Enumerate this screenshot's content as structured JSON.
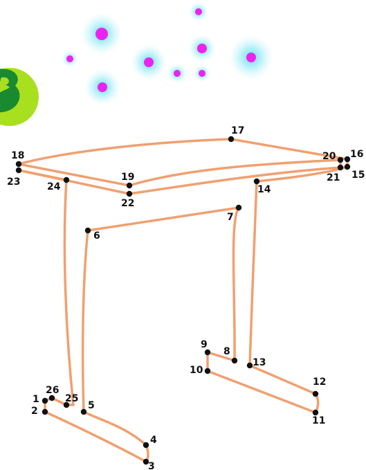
{
  "puzzle": {
    "type": "connect-the-dots",
    "subject": "table",
    "line_color": "#f0a070",
    "dot_color": "#111111",
    "dots": [
      {
        "n": "1"
      },
      {
        "n": "2"
      },
      {
        "n": "3"
      },
      {
        "n": "4"
      },
      {
        "n": "5"
      },
      {
        "n": "6"
      },
      {
        "n": "7"
      },
      {
        "n": "8"
      },
      {
        "n": "9"
      },
      {
        "n": "10"
      },
      {
        "n": "11"
      },
      {
        "n": "12"
      },
      {
        "n": "13"
      },
      {
        "n": "14"
      },
      {
        "n": "15"
      },
      {
        "n": "16"
      },
      {
        "n": "17"
      },
      {
        "n": "18"
      },
      {
        "n": "19"
      },
      {
        "n": "20"
      },
      {
        "n": "21"
      },
      {
        "n": "22"
      },
      {
        "n": "23"
      },
      {
        "n": "24"
      },
      {
        "n": "25"
      },
      {
        "n": "26"
      }
    ]
  },
  "decor": {
    "sparkle_core_color": "#ee22ee",
    "sparkle_glow_color": "#55ddee",
    "badge_colors": [
      "#a8e020",
      "#1a8a30"
    ]
  }
}
